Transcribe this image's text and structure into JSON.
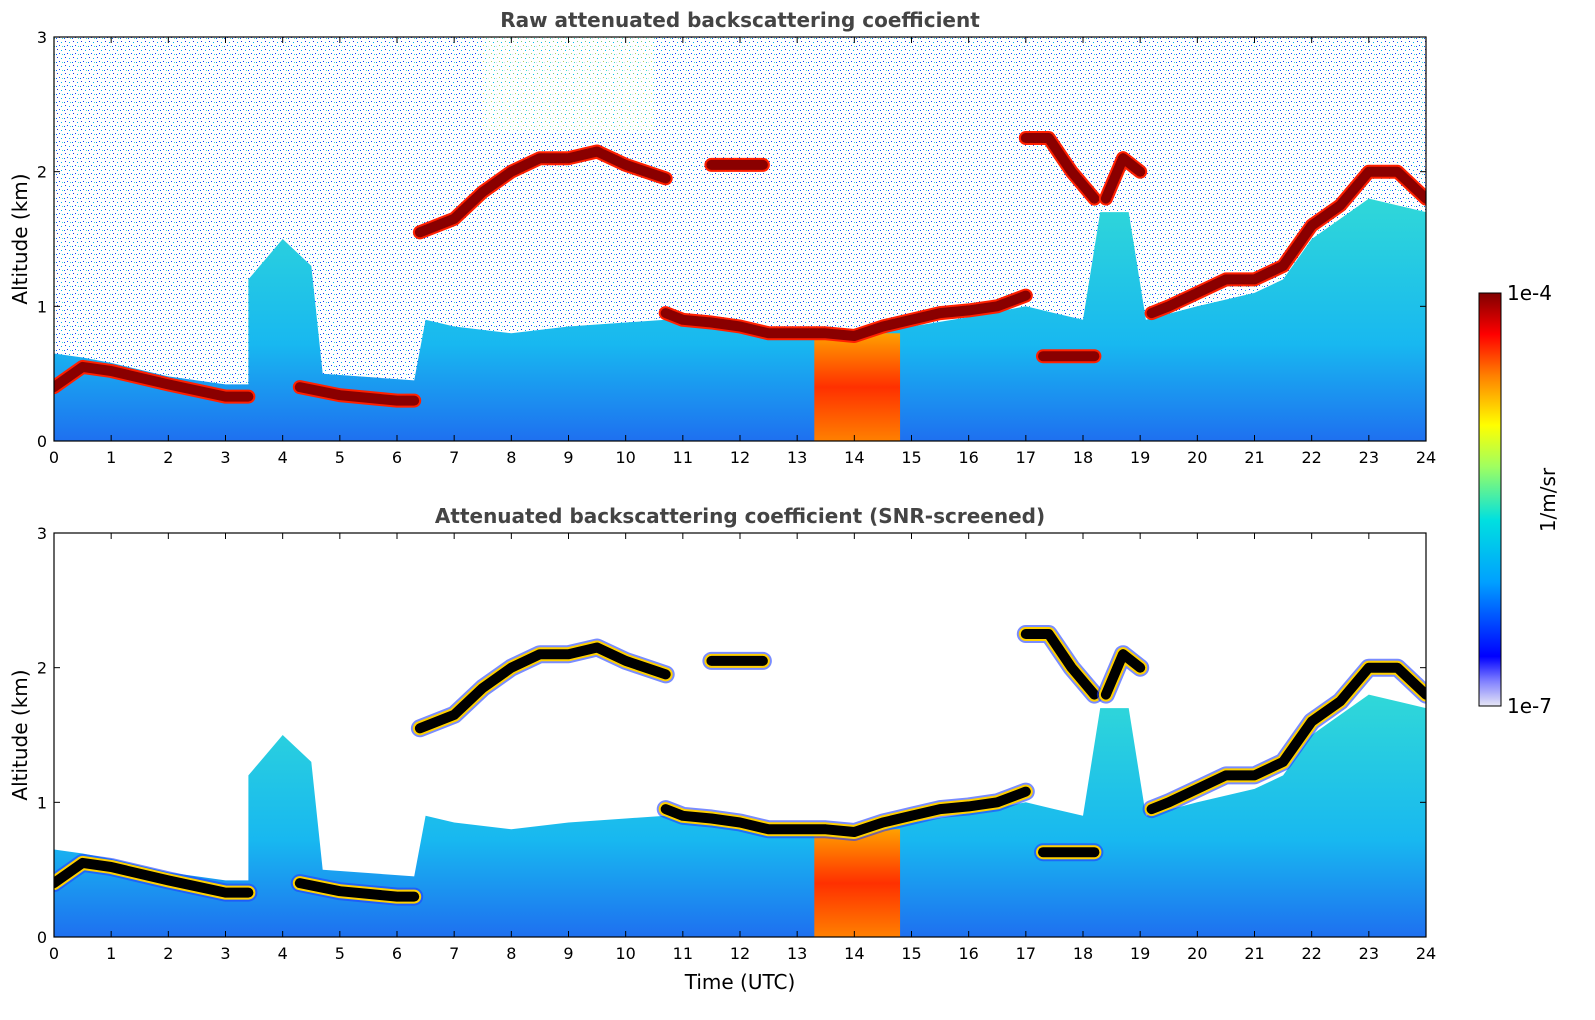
{
  "chart_data": [
    {
      "type": "heatmap",
      "title": "Raw attenuated backscattering coefficient",
      "xlabel": "",
      "ylabel": "Altitude (km)",
      "xlim": [
        0,
        24
      ],
      "ylim": [
        0,
        3
      ],
      "xticks": [
        "0",
        "1",
        "2",
        "3",
        "4",
        "5",
        "6",
        "7",
        "8",
        "9",
        "10",
        "11",
        "12",
        "13",
        "14",
        "15",
        "16",
        "17",
        "18",
        "19",
        "20",
        "21",
        "22",
        "23",
        "24"
      ],
      "yticks": [
        "0",
        "1",
        "2",
        "3"
      ],
      "grid": false,
      "cloud_layers": [
        {
          "x": [
            0,
            0.5,
            1,
            2,
            3,
            3.4
          ],
          "y": [
            0.4,
            0.55,
            0.52,
            0.42,
            0.33,
            0.33
          ]
        },
        {
          "x": [
            4.3,
            5,
            5.5,
            6,
            6.3
          ],
          "y": [
            0.4,
            0.34,
            0.32,
            0.3,
            0.3
          ]
        },
        {
          "x": [
            6.4,
            7,
            7.5,
            8,
            8.5,
            9,
            9.5,
            10,
            10.7
          ],
          "y": [
            1.55,
            1.65,
            1.85,
            2.0,
            2.1,
            2.1,
            2.15,
            2.05,
            1.95
          ]
        },
        {
          "x": [
            11.5,
            12.4
          ],
          "y": [
            2.05,
            2.05
          ]
        },
        {
          "x": [
            10.7,
            11,
            11.5,
            12,
            12.5,
            13,
            13.5,
            14,
            14.5,
            15,
            15.5,
            16,
            16.5,
            17
          ],
          "y": [
            0.95,
            0.9,
            0.88,
            0.85,
            0.8,
            0.8,
            0.8,
            0.78,
            0.85,
            0.9,
            0.95,
            0.97,
            1.0,
            1.08
          ]
        },
        {
          "x": [
            17,
            17.4,
            17.8,
            18.2
          ],
          "y": [
            2.25,
            2.25,
            2.0,
            1.8
          ]
        },
        {
          "x": [
            18.4,
            18.7,
            19.0
          ],
          "y": [
            1.8,
            2.1,
            2.0
          ]
        },
        {
          "x": [
            19.2,
            19.5,
            20,
            20.5,
            21,
            21.5,
            22,
            22.5,
            23,
            23.5,
            24
          ],
          "y": [
            0.95,
            1.0,
            1.1,
            1.2,
            1.2,
            1.3,
            1.6,
            1.75,
            2.0,
            2.0,
            1.8
          ]
        },
        {
          "x": [
            17.3,
            18.2
          ],
          "y": [
            0.63,
            0.63
          ]
        }
      ],
      "strong_aerosol_region": {
        "x": [
          13.3,
          14.8
        ],
        "y": [
          0,
          0.8
        ]
      }
    },
    {
      "type": "heatmap",
      "title": "Attenuated backscattering coefficient (SNR-screened)",
      "xlabel": "Time (UTC)",
      "ylabel": "Altitude (km)",
      "xlim": [
        0,
        24
      ],
      "ylim": [
        0,
        3
      ],
      "xticks": [
        "0",
        "1",
        "2",
        "3",
        "4",
        "5",
        "6",
        "7",
        "8",
        "9",
        "10",
        "11",
        "12",
        "13",
        "14",
        "15",
        "16",
        "17",
        "18",
        "19",
        "20",
        "21",
        "22",
        "23",
        "24"
      ],
      "yticks": [
        "0",
        "1",
        "2",
        "3"
      ],
      "grid": false,
      "cloud_layers": [
        {
          "x": [
            0,
            0.5,
            1,
            2,
            3,
            3.4
          ],
          "y": [
            0.4,
            0.55,
            0.52,
            0.42,
            0.33,
            0.33
          ]
        },
        {
          "x": [
            4.3,
            5,
            5.5,
            6,
            6.3
          ],
          "y": [
            0.4,
            0.34,
            0.32,
            0.3,
            0.3
          ]
        },
        {
          "x": [
            6.4,
            7,
            7.5,
            8,
            8.5,
            9,
            9.5,
            10,
            10.7
          ],
          "y": [
            1.55,
            1.65,
            1.85,
            2.0,
            2.1,
            2.1,
            2.15,
            2.05,
            1.95
          ]
        },
        {
          "x": [
            11.5,
            12.4
          ],
          "y": [
            2.05,
            2.05
          ]
        },
        {
          "x": [
            10.7,
            11,
            11.5,
            12,
            12.5,
            13,
            13.5,
            14,
            14.5,
            15,
            15.5,
            16,
            16.5,
            17
          ],
          "y": [
            0.95,
            0.9,
            0.88,
            0.85,
            0.8,
            0.8,
            0.8,
            0.78,
            0.85,
            0.9,
            0.95,
            0.97,
            1.0,
            1.08
          ]
        },
        {
          "x": [
            17,
            17.4,
            17.8,
            18.2
          ],
          "y": [
            2.25,
            2.25,
            2.0,
            1.8
          ]
        },
        {
          "x": [
            18.4,
            18.7,
            19.0
          ],
          "y": [
            1.8,
            2.1,
            2.0
          ]
        },
        {
          "x": [
            19.2,
            19.5,
            20,
            20.5,
            21,
            21.5,
            22,
            22.5,
            23,
            23.5,
            24
          ],
          "y": [
            0.95,
            1.0,
            1.1,
            1.2,
            1.2,
            1.3,
            1.6,
            1.75,
            2.0,
            2.0,
            1.8
          ]
        },
        {
          "x": [
            17.3,
            18.2
          ],
          "y": [
            0.63,
            0.63
          ]
        }
      ],
      "strong_aerosol_region": {
        "x": [
          13.3,
          14.8
        ],
        "y": [
          0,
          0.8
        ]
      }
    }
  ],
  "colorbar": {
    "label": "1/m/sr",
    "max_label": "1e-4",
    "min_label": "1e-7",
    "colormap": "jet",
    "colors": [
      "#e6e6f5",
      "#0000ff",
      "#00a0ff",
      "#00e0e0",
      "#a0ff60",
      "#ffff00",
      "#ff8000",
      "#ff0000",
      "#800000"
    ]
  }
}
